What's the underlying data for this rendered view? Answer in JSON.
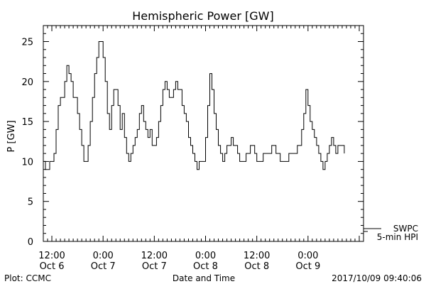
{
  "chart_data": {
    "type": "line",
    "title": "Hemispheric Power [GW]",
    "ylabel": "P [GW]",
    "xlabel": "Date and Time",
    "ylim": [
      0,
      27
    ],
    "yticks": [
      0,
      5,
      10,
      15,
      20,
      25
    ],
    "xlim_hours": [
      -2,
      73
    ],
    "xticks": [
      {
        "hour": 0,
        "time": "12:00",
        "date": "Oct 6"
      },
      {
        "hour": 12,
        "time": "0:00",
        "date": "Oct 7"
      },
      {
        "hour": 24,
        "time": "12:00",
        "date": "Oct 7"
      },
      {
        "hour": 36,
        "time": "0:00",
        "date": "Oct 8"
      },
      {
        "hour": 48,
        "time": "12:00",
        "date": "Oct 8"
      },
      {
        "hour": 60,
        "time": "0:00",
        "date": "Oct 9"
      }
    ],
    "legend": [
      "SWPC",
      "5-min HPI"
    ],
    "series": [
      {
        "name": "SWPC",
        "values": [
          [
            -2.0,
            10
          ],
          [
            -1.5,
            9
          ],
          [
            -1.0,
            9
          ],
          [
            -0.5,
            10
          ],
          [
            0.0,
            10
          ],
          [
            0.5,
            11
          ],
          [
            1.0,
            14
          ],
          [
            1.5,
            17
          ],
          [
            2.0,
            18
          ],
          [
            2.5,
            18
          ],
          [
            3.0,
            20
          ],
          [
            3.5,
            22
          ],
          [
            4.0,
            21
          ],
          [
            4.5,
            20
          ],
          [
            5.0,
            18
          ],
          [
            5.5,
            18
          ],
          [
            6.0,
            16
          ],
          [
            6.5,
            14
          ],
          [
            7.0,
            12
          ],
          [
            7.5,
            10
          ],
          [
            8.0,
            10
          ],
          [
            8.5,
            12
          ],
          [
            9.0,
            15
          ],
          [
            9.5,
            18
          ],
          [
            10.0,
            21
          ],
          [
            10.5,
            23
          ],
          [
            11.0,
            25
          ],
          [
            11.5,
            25
          ],
          [
            12.0,
            23
          ],
          [
            12.5,
            20
          ],
          [
            13.0,
            16
          ],
          [
            13.5,
            14
          ],
          [
            14.0,
            17
          ],
          [
            14.5,
            19
          ],
          [
            15.0,
            19
          ],
          [
            15.5,
            17
          ],
          [
            16.0,
            14
          ],
          [
            16.5,
            16
          ],
          [
            17.0,
            13
          ],
          [
            17.5,
            11
          ],
          [
            18.0,
            10
          ],
          [
            18.5,
            11
          ],
          [
            19.0,
            12
          ],
          [
            19.5,
            13
          ],
          [
            20.0,
            14
          ],
          [
            20.5,
            16
          ],
          [
            21.0,
            17
          ],
          [
            21.5,
            15
          ],
          [
            22.0,
            14
          ],
          [
            22.5,
            13
          ],
          [
            23.0,
            14
          ],
          [
            23.5,
            12
          ],
          [
            24.0,
            12
          ],
          [
            24.5,
            13
          ],
          [
            25.0,
            15
          ],
          [
            25.5,
            17
          ],
          [
            26.0,
            19
          ],
          [
            26.5,
            20
          ],
          [
            27.0,
            19
          ],
          [
            27.5,
            18
          ],
          [
            28.0,
            18
          ],
          [
            28.5,
            19
          ],
          [
            29.0,
            20
          ],
          [
            29.5,
            19
          ],
          [
            30.0,
            19
          ],
          [
            30.5,
            17
          ],
          [
            31.0,
            16
          ],
          [
            31.5,
            15
          ],
          [
            32.0,
            13
          ],
          [
            32.5,
            12
          ],
          [
            33.0,
            11
          ],
          [
            33.5,
            10
          ],
          [
            34.0,
            9
          ],
          [
            34.5,
            10
          ],
          [
            35.0,
            10
          ],
          [
            35.5,
            10
          ],
          [
            36.0,
            13
          ],
          [
            36.5,
            17
          ],
          [
            37.0,
            21
          ],
          [
            37.5,
            19
          ],
          [
            38.0,
            16
          ],
          [
            38.5,
            14
          ],
          [
            39.0,
            12
          ],
          [
            39.5,
            11
          ],
          [
            40.0,
            10
          ],
          [
            40.5,
            11
          ],
          [
            41.0,
            12
          ],
          [
            41.5,
            12
          ],
          [
            42.0,
            13
          ],
          [
            42.5,
            12
          ],
          [
            43.0,
            12
          ],
          [
            43.5,
            11
          ],
          [
            44.0,
            10
          ],
          [
            44.5,
            10
          ],
          [
            45.0,
            10
          ],
          [
            45.5,
            11
          ],
          [
            46.0,
            11
          ],
          [
            46.5,
            12
          ],
          [
            47.0,
            12
          ],
          [
            47.5,
            11
          ],
          [
            48.0,
            10
          ],
          [
            48.5,
            10
          ],
          [
            49.0,
            10
          ],
          [
            49.5,
            11
          ],
          [
            50.0,
            11
          ],
          [
            50.5,
            11
          ],
          [
            51.0,
            11
          ],
          [
            51.5,
            12
          ],
          [
            52.0,
            12
          ],
          [
            52.5,
            11
          ],
          [
            53.0,
            11
          ],
          [
            53.5,
            10
          ],
          [
            54.0,
            10
          ],
          [
            54.5,
            10
          ],
          [
            55.0,
            10
          ],
          [
            55.5,
            11
          ],
          [
            56.0,
            11
          ],
          [
            56.5,
            11
          ],
          [
            57.0,
            11
          ],
          [
            57.5,
            12
          ],
          [
            58.0,
            12
          ],
          [
            58.5,
            14
          ],
          [
            59.0,
            16
          ],
          [
            59.5,
            19
          ],
          [
            60.0,
            17
          ],
          [
            60.5,
            15
          ],
          [
            61.0,
            14
          ],
          [
            61.5,
            13
          ],
          [
            62.0,
            12
          ],
          [
            62.5,
            11
          ],
          [
            63.0,
            10
          ],
          [
            63.5,
            9
          ],
          [
            64.0,
            10
          ],
          [
            64.5,
            11
          ],
          [
            65.0,
            12
          ],
          [
            65.5,
            13
          ],
          [
            66.0,
            12
          ],
          [
            66.5,
            11
          ],
          [
            67.0,
            12
          ],
          [
            67.5,
            12
          ],
          [
            68.0,
            12
          ],
          [
            68.5,
            11
          ]
        ]
      }
    ]
  },
  "footer": {
    "left": "Plot: CCMC",
    "right": "2017/10/09 09:40:06"
  }
}
